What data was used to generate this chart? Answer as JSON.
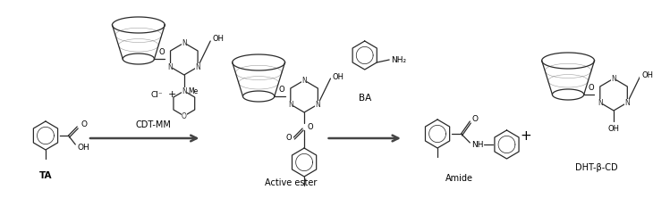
{
  "bg_color": "#ffffff",
  "fig_width": 7.3,
  "fig_height": 2.22,
  "dpi": 100,
  "line_color": "#2a2a2a",
  "text_color": "#000000",
  "arrow_color": "#444444",
  "labels": {
    "TA": "TA",
    "CDT_MM": "CDT-MM",
    "active_ester": "Active ester",
    "BA": "BA",
    "amide": "Amide",
    "DHT": "DHT-β-CD",
    "Cl": "Cl⁻",
    "plus_morph": "+",
    "plus_product": "+"
  }
}
